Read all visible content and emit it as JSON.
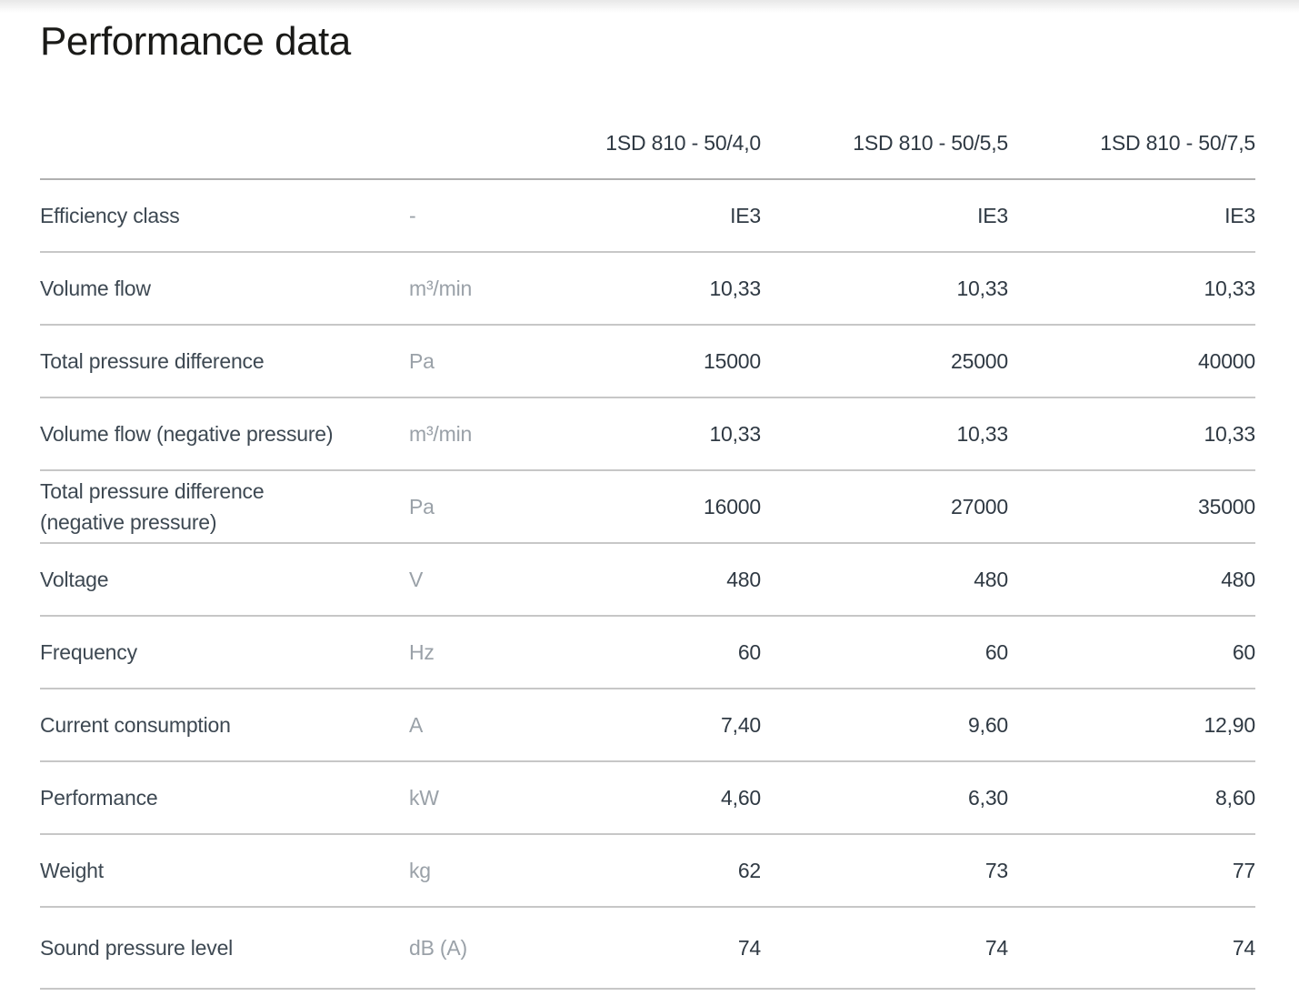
{
  "title": "Performance data",
  "table": {
    "columns": [
      "1SD 810 - 50/4,0",
      "1SD 810 - 50/5,5",
      "1SD 810 - 50/7,5"
    ],
    "rows": [
      {
        "label": "Efficiency class",
        "unit": "-",
        "values": [
          "IE3",
          "IE3",
          "IE3"
        ]
      },
      {
        "label": "Volume flow",
        "unit": "m³/min",
        "values": [
          "10,33",
          "10,33",
          "10,33"
        ]
      },
      {
        "label": "Total pressure difference",
        "unit": "Pa",
        "values": [
          "15000",
          "25000",
          "40000"
        ]
      },
      {
        "label": "Volume flow (negative pressure)",
        "unit": "m³/min",
        "values": [
          "10,33",
          "10,33",
          "10,33"
        ]
      },
      {
        "label": "Total pressure difference (negative pressure)",
        "unit": "Pa",
        "values": [
          "16000",
          "27000",
          "35000"
        ]
      },
      {
        "label": "Voltage",
        "unit": "V",
        "values": [
          "480",
          "480",
          "480"
        ]
      },
      {
        "label": "Frequency",
        "unit": "Hz",
        "values": [
          "60",
          "60",
          "60"
        ]
      },
      {
        "label": "Current consumption",
        "unit": "A",
        "values": [
          "7,40",
          "9,60",
          "12,90"
        ]
      },
      {
        "label": "Performance",
        "unit": "kW",
        "values": [
          "4,60",
          "6,30",
          "8,60"
        ]
      },
      {
        "label": "Weight",
        "unit": "kg",
        "values": [
          "62",
          "73",
          "77"
        ]
      },
      {
        "label": "Sound pressure level",
        "unit": "dB (A)",
        "values": [
          "74",
          "74",
          "74"
        ]
      }
    ]
  },
  "colors": {
    "title_color": "#1a1a18",
    "label_color": "#3d4852",
    "value_color": "#2f3943",
    "unit_color": "#9aa1a8",
    "header_rule": "#b0b0b0",
    "row_rule": "#c7c7c7",
    "top_fade": "#e8e8e8"
  }
}
